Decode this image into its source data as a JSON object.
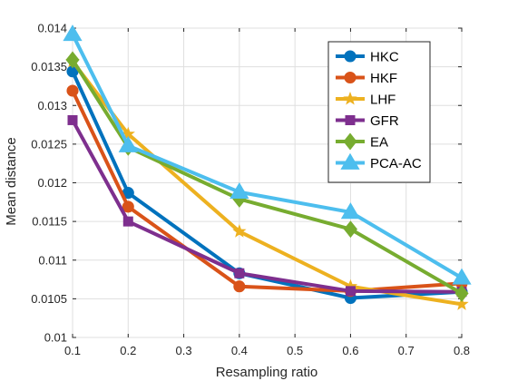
{
  "chart_data": {
    "type": "line",
    "title": "",
    "xlabel": "Resampling ratio",
    "ylabel": "Mean distance",
    "xlim": [
      0.1,
      0.8
    ],
    "ylim": [
      0.01,
      0.014
    ],
    "xticks": [
      0.1,
      0.2,
      0.3,
      0.4,
      0.5,
      0.6,
      0.7,
      0.8
    ],
    "xtick_labels": [
      "0.1",
      "0.2",
      "0.3",
      "0.4",
      "0.5",
      "0.6",
      "0.7",
      "0.8"
    ],
    "yticks": [
      0.01,
      0.0105,
      0.011,
      0.0115,
      0.012,
      0.0125,
      0.013,
      0.0135,
      0.014
    ],
    "ytick_labels": [
      "0.01",
      "0.0105",
      "0.011",
      "0.0115",
      "0.012",
      "0.0125",
      "0.013",
      "0.0135",
      "0.014"
    ],
    "grid": true,
    "legend_position": "top-right",
    "x": [
      0.1,
      0.2,
      0.4,
      0.6,
      0.8
    ],
    "series": [
      {
        "name": "HKC",
        "color": "#0072BD",
        "marker": "circle",
        "values": [
          0.01344,
          0.01187,
          0.01083,
          0.01051,
          0.01059
        ]
      },
      {
        "name": "HKF",
        "color": "#D95319",
        "marker": "circle",
        "values": [
          0.01319,
          0.01169,
          0.01066,
          0.0106,
          0.0107
        ]
      },
      {
        "name": "LHF",
        "color": "#EDB120",
        "marker": "star",
        "values": [
          0.01357,
          0.01263,
          0.01137,
          0.01066,
          0.01043
        ]
      },
      {
        "name": "GFR",
        "color": "#7E2F8E",
        "marker": "square",
        "values": [
          0.01281,
          0.0115,
          0.01083,
          0.0106,
          0.01059
        ]
      },
      {
        "name": "EA",
        "color": "#77AC30",
        "marker": "diamond",
        "values": [
          0.01359,
          0.01246,
          0.01179,
          0.0114,
          0.01057
        ]
      },
      {
        "name": "PCA-AC",
        "color": "#4DBEEE",
        "marker": "triangle",
        "values": [
          0.01392,
          0.01248,
          0.01188,
          0.01162,
          0.01077
        ]
      }
    ]
  }
}
